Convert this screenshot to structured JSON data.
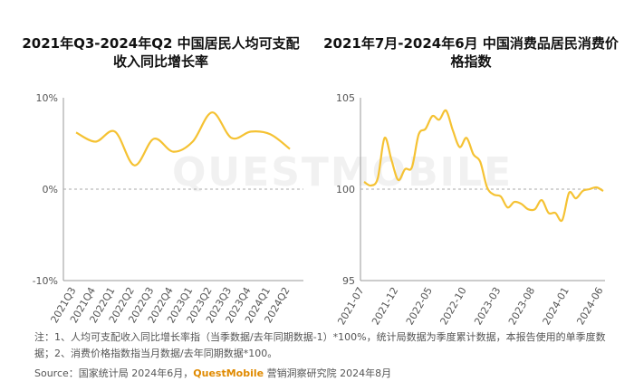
{
  "watermark": "QUESTMOBILE",
  "note": "注：1、人均可支配收入同比增长率指（当季数据/去年同期数据-1）*100%，统计局数据为季度累计数据，本报告使用的单季度数据；2、消费价格指数指当月数据/去年同期数据*100。",
  "source": {
    "prefix": "Source：国家统计局 2024年6月，",
    "brand": "QuestMobile",
    "suffix": " 营销洞察研究院 2024年8月"
  },
  "colors": {
    "line": "#f5c233",
    "axis": "#999999",
    "ref": "#aaaaaa"
  },
  "chart_data": [
    {
      "type": "line",
      "title": "2021年Q3-2024年Q2 中国居民人均可支配收入同比增长率",
      "categories": [
        "2021Q3",
        "2021Q4",
        "2022Q1",
        "2022Q2",
        "2022Q3",
        "2022Q4",
        "2023Q1",
        "2023Q2",
        "2023Q3",
        "2023Q4",
        "2024Q1",
        "2024Q2"
      ],
      "values": [
        6.2,
        5.2,
        6.3,
        2.6,
        5.5,
        4.1,
        5.2,
        8.4,
        5.6,
        6.3,
        6.0,
        4.4
      ],
      "ylim": [
        -10,
        10
      ],
      "yticks": [
        {
          "v": 10,
          "label": "10%"
        },
        {
          "v": 0,
          "label": "0%"
        },
        {
          "v": -10,
          "label": "-10%"
        }
      ],
      "reference_line": 0
    },
    {
      "type": "line",
      "title": "2021年7月-2024年6月 中国消费品居民消费价格指数",
      "x_labels": [
        "2021-07",
        "2021-12",
        "2022-05",
        "2022-10",
        "2023-03",
        "2023-08",
        "2024-01",
        "2024-06"
      ],
      "x": [
        "2021-07",
        "2021-08",
        "2021-09",
        "2021-10",
        "2021-11",
        "2021-12",
        "2022-01",
        "2022-02",
        "2022-03",
        "2022-04",
        "2022-05",
        "2022-06",
        "2022-07",
        "2022-08",
        "2022-09",
        "2022-10",
        "2022-11",
        "2022-12",
        "2023-01",
        "2023-02",
        "2023-03",
        "2023-04",
        "2023-05",
        "2023-06",
        "2023-07",
        "2023-08",
        "2023-09",
        "2023-10",
        "2023-11",
        "2023-12",
        "2024-01",
        "2024-02",
        "2024-03",
        "2024-04",
        "2024-05",
        "2024-06"
      ],
      "values": [
        100.4,
        100.2,
        100.6,
        102.8,
        101.6,
        100.5,
        101.1,
        101.2,
        103.0,
        103.3,
        104.0,
        103.8,
        104.3,
        103.2,
        102.3,
        102.8,
        101.9,
        101.5,
        100.1,
        99.7,
        99.6,
        99.0,
        99.3,
        99.2,
        98.9,
        98.9,
        99.4,
        98.7,
        98.7,
        98.3,
        99.8,
        99.5,
        99.9,
        100.0,
        100.1,
        99.9
      ],
      "ylim": [
        95,
        105
      ],
      "yticks": [
        {
          "v": 105,
          "label": "105"
        },
        {
          "v": 100,
          "label": "100"
        },
        {
          "v": 95,
          "label": "95"
        }
      ],
      "reference_line": 100
    }
  ]
}
